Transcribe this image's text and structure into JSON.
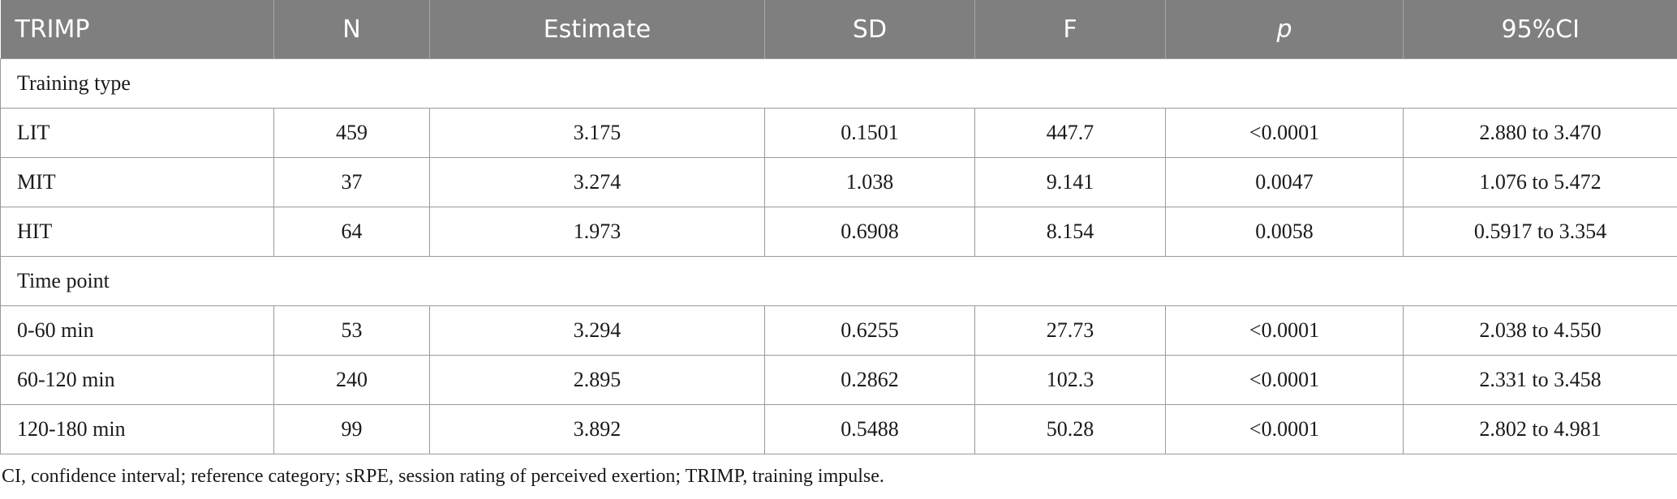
{
  "table": {
    "columns": [
      "TRIMP",
      "N",
      "Estimate",
      "SD",
      "F",
      "p",
      "95%CI"
    ],
    "sections": [
      {
        "title": "Training type",
        "rows": [
          [
            "LIT",
            "459",
            "3.175",
            "0.1501",
            "447.7",
            "<0.0001",
            "2.880 to 3.470"
          ],
          [
            "MIT",
            "37",
            "3.274",
            "1.038",
            "9.141",
            "0.0047",
            "1.076 to 5.472"
          ],
          [
            "HIT",
            "64",
            "1.973",
            "0.6908",
            "8.154",
            "0.0058",
            "0.5917 to 3.354"
          ]
        ]
      },
      {
        "title": "Time point",
        "rows": [
          [
            "0-60 min",
            "53",
            "3.294",
            "0.6255",
            "27.73",
            "<0.0001",
            "2.038 to 4.550"
          ],
          [
            "60-120 min",
            "240",
            "2.895",
            "0.2862",
            "102.3",
            "<0.0001",
            "2.331 to 3.458"
          ],
          [
            "120-180 min",
            "99",
            "3.892",
            "0.5488",
            "50.28",
            "<0.0001",
            "2.802 to 4.981"
          ]
        ]
      }
    ]
  },
  "footnote": "CI, confidence interval; reference category; sRPE, session rating of perceived exertion; TRIMP, training impulse.",
  "colors": {
    "header_bg": "#7f7f7f",
    "header_text": "#ffffff",
    "border": "#9a9a9a",
    "body_text": "#1a1a1a"
  }
}
